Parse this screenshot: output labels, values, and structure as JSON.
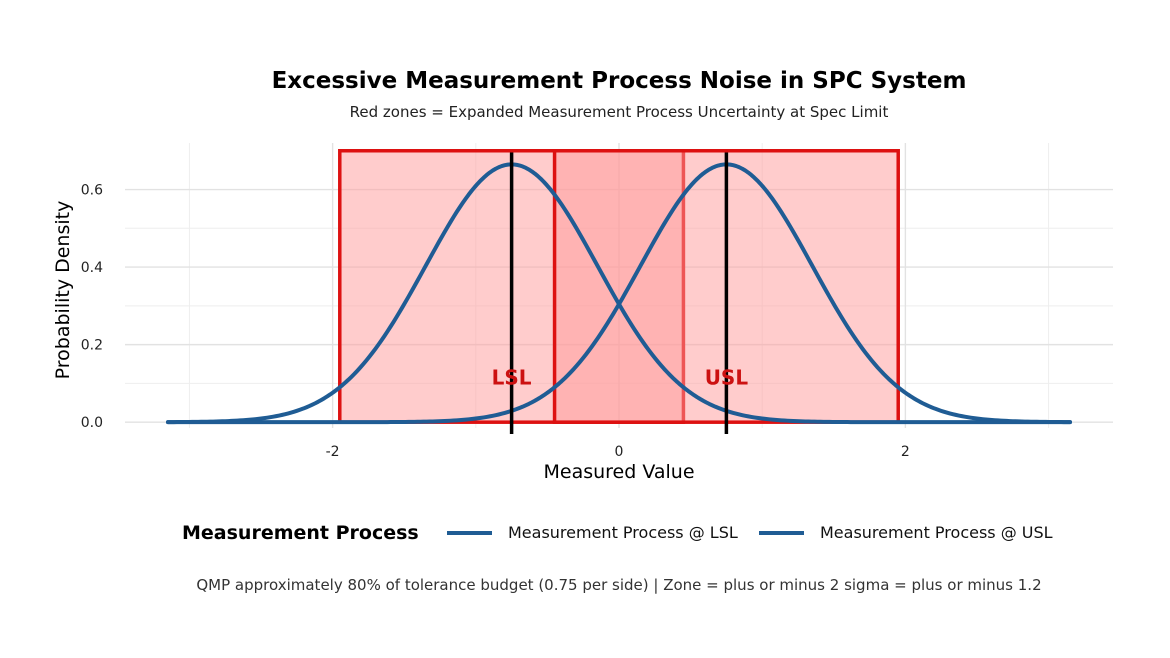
{
  "chart_data": {
    "type": "line",
    "title": "Excessive Measurement Process Noise in SPC System",
    "subtitle": "Red zones = Expanded Measurement Process Uncertainty at Spec Limit",
    "xlabel": "Measured Value",
    "ylabel": "Probability Density",
    "caption": "QMP approximately 80% of tolerance budget (0.75 per side) | Zone = plus or minus 2 sigma = plus or minus 1.2",
    "xlim": [
      -3.45,
      3.45
    ],
    "ylim": [
      -0.015,
      0.72
    ],
    "x_ticks": [
      -2,
      0,
      2
    ],
    "x_tick_labels": [
      "-2",
      "0",
      "2"
    ],
    "y_ticks": [
      0.0,
      0.2,
      0.4,
      0.6
    ],
    "y_tick_labels": [
      "0.0",
      "0.2",
      "0.4",
      "0.6"
    ],
    "grid": true,
    "legend": {
      "title": "Measurement Process",
      "position": "bottom",
      "entries": [
        "Measurement Process @ LSL",
        "Measurement Process @ USL"
      ]
    },
    "series": [
      {
        "name": "Measurement Process @ LSL",
        "distribution": "normal",
        "mean": -0.75,
        "sd": 0.6,
        "x_range": [
          -3.15,
          3.15
        ],
        "color": "#1f5c94"
      },
      {
        "name": "Measurement Process @ USL",
        "distribution": "normal",
        "mean": 0.75,
        "sd": 0.6,
        "x_range": [
          -3.15,
          3.15
        ],
        "color": "#1f5c94"
      }
    ],
    "zones": [
      {
        "xmin": -1.95,
        "xmax": 0.45,
        "ymin": 0,
        "ymax": 0.7,
        "fill": "#ff9999",
        "stroke": "#dd1111"
      },
      {
        "xmin": -0.45,
        "xmax": 1.95,
        "ymin": 0,
        "ymax": 0.7,
        "fill": "#ff9999",
        "stroke": "#dd1111"
      }
    ],
    "vlines": [
      {
        "name": "LSL",
        "x": -0.75,
        "color": "#000000"
      },
      {
        "name": "USL",
        "x": 0.75,
        "color": "#000000"
      }
    ],
    "annotations": [
      {
        "text": "LSL",
        "x": -0.75,
        "y": 0.115,
        "color": "#cc1111"
      },
      {
        "text": "USL",
        "x": 0.75,
        "y": 0.115,
        "color": "#cc1111"
      }
    ]
  }
}
